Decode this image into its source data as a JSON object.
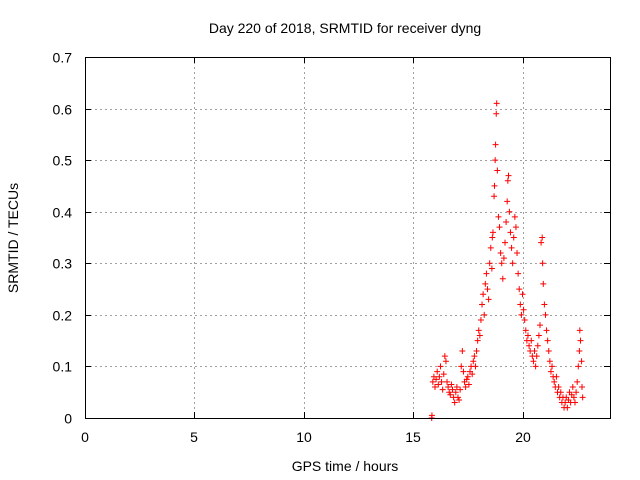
{
  "chart_data": {
    "type": "scatter",
    "title": "Day 220 of 2018, SRMTID for receiver dyng",
    "xlabel": "GPS time / hours",
    "ylabel": "SRMTID / TECUs",
    "xlim": [
      0,
      24
    ],
    "ylim": [
      0,
      0.7
    ],
    "xticks": [
      0,
      5,
      10,
      15,
      20
    ],
    "yticks": [
      0,
      0.1,
      0.2,
      0.3,
      0.4,
      0.5,
      0.6,
      0.7
    ],
    "xtick_labels": [
      "0",
      "5",
      "10",
      "15",
      "20"
    ],
    "ytick_labels": [
      "0",
      "0.1",
      "0.2",
      "0.3",
      "0.4",
      "0.5",
      "0.6",
      "0.7"
    ],
    "grid": true,
    "marker": "plus",
    "series": [
      {
        "name": "SRMTID",
        "color": "#ff0000",
        "points": [
          [
            15.85,
            0.0
          ],
          [
            15.86,
            0.005
          ],
          [
            15.9,
            0.07
          ],
          [
            15.95,
            0.08
          ],
          [
            16.0,
            0.06
          ],
          [
            16.05,
            0.075
          ],
          [
            16.1,
            0.09
          ],
          [
            16.15,
            0.065
          ],
          [
            16.2,
            0.08
          ],
          [
            16.25,
            0.1
          ],
          [
            16.3,
            0.07
          ],
          [
            16.35,
            0.055
          ],
          [
            16.4,
            0.085
          ],
          [
            16.45,
            0.12
          ],
          [
            16.5,
            0.11
          ],
          [
            16.55,
            0.07
          ],
          [
            16.6,
            0.06
          ],
          [
            16.65,
            0.05
          ],
          [
            16.7,
            0.045
          ],
          [
            16.75,
            0.065
          ],
          [
            16.8,
            0.055
          ],
          [
            16.85,
            0.04
          ],
          [
            16.9,
            0.03
          ],
          [
            16.95,
            0.05
          ],
          [
            17.0,
            0.06
          ],
          [
            17.05,
            0.04
          ],
          [
            17.1,
            0.035
          ],
          [
            17.15,
            0.055
          ],
          [
            17.2,
            0.1
          ],
          [
            17.25,
            0.13
          ],
          [
            17.3,
            0.09
          ],
          [
            17.35,
            0.07
          ],
          [
            17.4,
            0.06
          ],
          [
            17.45,
            0.075
          ],
          [
            17.5,
            0.08
          ],
          [
            17.55,
            0.065
          ],
          [
            17.6,
            0.09
          ],
          [
            17.65,
            0.1
          ],
          [
            17.7,
            0.085
          ],
          [
            17.75,
            0.11
          ],
          [
            17.8,
            0.12
          ],
          [
            17.85,
            0.1
          ],
          [
            17.9,
            0.13
          ],
          [
            17.95,
            0.15
          ],
          [
            18.0,
            0.17
          ],
          [
            18.05,
            0.16
          ],
          [
            18.1,
            0.19
          ],
          [
            18.15,
            0.22
          ],
          [
            18.2,
            0.24
          ],
          [
            18.25,
            0.2
          ],
          [
            18.3,
            0.26
          ],
          [
            18.35,
            0.28
          ],
          [
            18.4,
            0.25
          ],
          [
            18.45,
            0.23
          ],
          [
            18.5,
            0.3
          ],
          [
            18.55,
            0.33
          ],
          [
            18.6,
            0.29
          ],
          [
            18.62,
            0.35
          ],
          [
            18.65,
            0.36
          ],
          [
            18.7,
            0.43
          ],
          [
            18.72,
            0.45
          ],
          [
            18.75,
            0.5
          ],
          [
            18.77,
            0.53
          ],
          [
            18.8,
            0.59
          ],
          [
            18.82,
            0.61
          ],
          [
            18.85,
            0.48
          ],
          [
            18.9,
            0.39
          ],
          [
            18.95,
            0.37
          ],
          [
            19.0,
            0.32
          ],
          [
            19.05,
            0.3
          ],
          [
            19.1,
            0.27
          ],
          [
            19.15,
            0.31
          ],
          [
            19.2,
            0.34
          ],
          [
            19.25,
            0.38
          ],
          [
            19.3,
            0.42
          ],
          [
            19.33,
            0.46
          ],
          [
            19.36,
            0.47
          ],
          [
            19.4,
            0.4
          ],
          [
            19.45,
            0.36
          ],
          [
            19.5,
            0.33
          ],
          [
            19.55,
            0.3
          ],
          [
            19.6,
            0.35
          ],
          [
            19.65,
            0.39
          ],
          [
            19.7,
            0.37
          ],
          [
            19.75,
            0.32
          ],
          [
            19.8,
            0.28
          ],
          [
            19.85,
            0.25
          ],
          [
            19.9,
            0.22
          ],
          [
            19.95,
            0.2
          ],
          [
            20.0,
            0.24
          ],
          [
            20.05,
            0.21
          ],
          [
            20.1,
            0.19
          ],
          [
            20.15,
            0.17
          ],
          [
            20.2,
            0.15
          ],
          [
            20.25,
            0.16
          ],
          [
            20.3,
            0.14
          ],
          [
            20.35,
            0.13
          ],
          [
            20.4,
            0.15
          ],
          [
            20.45,
            0.12
          ],
          [
            20.5,
            0.11
          ],
          [
            20.55,
            0.13
          ],
          [
            20.6,
            0.1
          ],
          [
            20.65,
            0.12
          ],
          [
            20.7,
            0.14
          ],
          [
            20.75,
            0.16
          ],
          [
            20.8,
            0.18
          ],
          [
            20.85,
            0.34
          ],
          [
            20.9,
            0.35
          ],
          [
            20.92,
            0.3
          ],
          [
            20.95,
            0.26
          ],
          [
            21.0,
            0.22
          ],
          [
            21.05,
            0.2
          ],
          [
            21.1,
            0.17
          ],
          [
            21.15,
            0.15
          ],
          [
            21.2,
            0.13
          ],
          [
            21.25,
            0.11
          ],
          [
            21.3,
            0.09
          ],
          [
            21.35,
            0.1
          ],
          [
            21.4,
            0.08
          ],
          [
            21.45,
            0.07
          ],
          [
            21.5,
            0.06
          ],
          [
            21.55,
            0.08
          ],
          [
            21.6,
            0.05
          ],
          [
            21.65,
            0.06
          ],
          [
            21.7,
            0.04
          ],
          [
            21.75,
            0.05
          ],
          [
            21.8,
            0.03
          ],
          [
            21.85,
            0.04
          ],
          [
            21.9,
            0.02
          ],
          [
            21.95,
            0.03
          ],
          [
            22.0,
            0.04
          ],
          [
            22.05,
            0.02
          ],
          [
            22.1,
            0.035
          ],
          [
            22.15,
            0.05
          ],
          [
            22.2,
            0.03
          ],
          [
            22.25,
            0.045
          ],
          [
            22.3,
            0.06
          ],
          [
            22.35,
            0.04
          ],
          [
            22.4,
            0.03
          ],
          [
            22.45,
            0.05
          ],
          [
            22.5,
            0.07
          ],
          [
            22.55,
            0.1
          ],
          [
            22.6,
            0.13
          ],
          [
            22.62,
            0.17
          ],
          [
            22.65,
            0.15
          ],
          [
            22.7,
            0.11
          ],
          [
            22.72,
            0.06
          ],
          [
            22.75,
            0.04
          ]
        ]
      }
    ]
  }
}
